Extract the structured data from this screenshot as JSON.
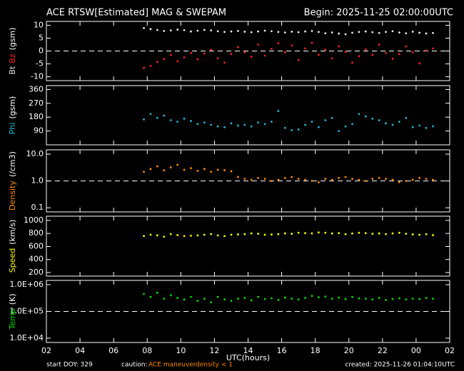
{
  "header": {
    "title": "ACE RTSW[Estimated] MAG & SWEPAM",
    "begin": "Begin: 2025-11-25 02:00:00UTC"
  },
  "footer": {
    "start": "start DOY: 329",
    "caution": "caution:",
    "maneuver": "ACE maneuver",
    "density": "density < 1",
    "created": "created: 2025-11-26 01:04:10UTC"
  },
  "chart_data": [
    {
      "type": "scatter",
      "ylabel": "(gsm)",
      "xlim": [
        2,
        26
      ],
      "ylim": [
        -11.5,
        11.5
      ],
      "yticks": [
        10,
        5,
        0,
        -5,
        -10
      ],
      "hline": 0,
      "x": [
        7.8,
        8.2,
        8.6,
        9.0,
        9.4,
        9.8,
        10.2,
        10.6,
        11.0,
        11.4,
        11.8,
        12.2,
        12.6,
        13.0,
        13.4,
        13.8,
        14.2,
        14.6,
        15.0,
        15.4,
        15.8,
        16.2,
        16.6,
        17.0,
        17.4,
        17.8,
        18.2,
        18.6,
        19.0,
        19.4,
        19.8,
        20.2,
        20.6,
        21.0,
        21.4,
        21.8,
        22.2,
        22.6,
        23.0,
        23.4,
        23.8,
        24.2,
        24.6,
        25.0
      ],
      "series": [
        {
          "name": "Bt",
          "color": "#e8e8e8",
          "values": [
            8.9,
            8.5,
            8.2,
            7.8,
            8.0,
            8.3,
            8.1,
            7.6,
            7.9,
            8.2,
            8.0,
            7.7,
            7.4,
            7.6,
            7.8,
            7.5,
            7.3,
            7.6,
            7.9,
            7.7,
            7.4,
            7.2,
            7.5,
            7.3,
            7.6,
            7.8,
            7.4,
            6.9,
            7.2,
            6.8,
            6.5,
            7.1,
            7.4,
            7.6,
            7.3,
            7.0,
            7.4,
            7.7,
            7.2,
            6.9,
            7.5,
            7.1,
            6.8,
            7.0
          ]
        },
        {
          "name": "Bz",
          "color": "#ff2020",
          "values": [
            -6.5,
            -5.8,
            -4.2,
            -3.1,
            -1.5,
            -4.0,
            -2.5,
            -0.8,
            -3.2,
            -1.0,
            0.5,
            -2.8,
            -4.5,
            -1.2,
            1.5,
            -0.5,
            -2.2,
            2.5,
            -1.8,
            0.8,
            3.0,
            -0.5,
            2.2,
            -3.5,
            1.0,
            3.2,
            -1.5,
            0.5,
            -2.8,
            1.8,
            -0.3,
            -4.5,
            -2.0,
            0.6,
            -1.5,
            2.5,
            -0.8,
            -3.0,
            -1.2,
            1.8,
            -0.5,
            -4.8,
            0.2,
            1.0
          ]
        }
      ]
    },
    {
      "type": "scatter",
      "ylabel": "(gsm)",
      "xlim": [
        2,
        26
      ],
      "ylim": [
        0,
        385
      ],
      "yticks": [
        360,
        270,
        180,
        90
      ],
      "x": [
        7.8,
        8.2,
        8.6,
        9.0,
        9.4,
        9.8,
        10.2,
        10.6,
        11.0,
        11.4,
        11.8,
        12.2,
        12.6,
        13.0,
        13.4,
        13.8,
        14.2,
        14.6,
        15.0,
        15.4,
        15.8,
        16.2,
        16.6,
        17.0,
        17.4,
        17.8,
        18.2,
        18.6,
        19.0,
        19.4,
        19.8,
        20.2,
        20.6,
        21.0,
        21.4,
        21.8,
        22.2,
        22.6,
        23.0,
        23.4,
        23.8,
        24.2,
        24.6,
        25.0
      ],
      "series": [
        {
          "name": "Phi",
          "color": "#20b8d8",
          "values": [
            165,
            200,
            175,
            190,
            160,
            150,
            170,
            155,
            135,
            145,
            130,
            120,
            115,
            140,
            125,
            130,
            120,
            145,
            135,
            150,
            220,
            110,
            95,
            100,
            130,
            150,
            115,
            160,
            175,
            90,
            120,
            135,
            200,
            185,
            170,
            160,
            140,
            130,
            150,
            175,
            115,
            125,
            110,
            120
          ]
        }
      ]
    },
    {
      "type": "scatter",
      "ylabel": "(/cm3)",
      "log": true,
      "xlim": [
        2,
        26
      ],
      "ylim": [
        0.07,
        14.5
      ],
      "yticks": [
        {
          "value": 10,
          "label": "10.0"
        },
        {
          "value": 1,
          "label": "1.0"
        },
        0.1
      ],
      "hline": 1,
      "x": [
        7.8,
        8.2,
        8.6,
        9.0,
        9.4,
        9.8,
        10.2,
        10.6,
        11.0,
        11.4,
        11.8,
        12.2,
        12.6,
        13.0,
        13.4,
        13.8,
        14.2,
        14.6,
        15.0,
        15.4,
        15.8,
        16.2,
        16.6,
        17.0,
        17.4,
        17.8,
        18.2,
        18.6,
        19.0,
        19.4,
        19.8,
        20.2,
        20.6,
        21.0,
        21.4,
        21.8,
        22.2,
        22.6,
        23.0,
        23.4,
        23.8,
        24.2,
        24.6,
        25.0
      ],
      "series": [
        {
          "name": "Density",
          "color": "#ff8c00",
          "values": [
            2.2,
            2.8,
            3.5,
            2.5,
            3.2,
            4.0,
            2.6,
            3.0,
            2.4,
            2.8,
            2.2,
            2.6,
            2.5,
            2.3,
            1.4,
            1.2,
            1.1,
            1.3,
            1.2,
            1.0,
            1.1,
            1.3,
            1.4,
            1.2,
            1.1,
            1.0,
            0.9,
            1.2,
            1.1,
            1.3,
            1.4,
            1.2,
            1.1,
            1.0,
            1.2,
            1.3,
            1.2,
            1.1,
            0.9,
            1.0,
            1.1,
            1.3,
            1.2,
            1.1
          ]
        }
      ]
    },
    {
      "type": "scatter",
      "ylabel": "(km/s)",
      "xlim": [
        2,
        26
      ],
      "ylim": [
        145,
        1065
      ],
      "yticks": [
        1000,
        800,
        600,
        400,
        200
      ],
      "x": [
        7.8,
        8.2,
        8.6,
        9.0,
        9.4,
        9.8,
        10.2,
        10.6,
        11.0,
        11.4,
        11.8,
        12.2,
        12.6,
        13.0,
        13.4,
        13.8,
        14.2,
        14.6,
        15.0,
        15.4,
        15.8,
        16.2,
        16.6,
        17.0,
        17.4,
        17.8,
        18.2,
        18.6,
        19.0,
        19.4,
        19.8,
        20.2,
        20.6,
        21.0,
        21.4,
        21.8,
        22.2,
        22.6,
        23.0,
        23.4,
        23.8,
        24.2,
        24.6,
        25.0
      ],
      "series": [
        {
          "name": "Speed",
          "color": "#ffff00",
          "values": [
            760,
            780,
            770,
            750,
            790,
            775,
            760,
            765,
            770,
            780,
            790,
            770,
            760,
            780,
            785,
            790,
            800,
            795,
            780,
            785,
            790,
            800,
            795,
            810,
            805,
            800,
            815,
            810,
            800,
            805,
            790,
            800,
            810,
            805,
            795,
            800,
            790,
            800,
            810,
            795,
            785,
            780,
            790,
            775
          ]
        }
      ]
    },
    {
      "type": "scatter",
      "ylabel": "(K)",
      "xlabel": "UTC(hours)",
      "log": true,
      "xlim": [
        2,
        26
      ],
      "ylim": [
        6900,
        1450000
      ],
      "yticks": [
        {
          "value": 1000000,
          "label": "1.0E+06"
        },
        {
          "value": 100000,
          "label": "1.0E+05"
        },
        {
          "value": 10000,
          "label": "1.0E+04"
        }
      ],
      "hline": 100000,
      "xticks": [
        {
          "value": 2,
          "label": "02"
        },
        {
          "value": 4,
          "label": "04"
        },
        {
          "value": 6,
          "label": "06"
        },
        {
          "value": 8,
          "label": "08"
        },
        10,
        12,
        14,
        16,
        18,
        20,
        22,
        {
          "value": 24,
          "label": "00"
        },
        {
          "value": 26,
          "label": "02"
        }
      ],
      "x": [
        7.8,
        8.2,
        8.6,
        9.0,
        9.4,
        9.8,
        10.2,
        10.6,
        11.0,
        11.4,
        11.8,
        12.2,
        12.6,
        13.0,
        13.4,
        13.8,
        14.2,
        14.6,
        15.0,
        15.4,
        15.8,
        16.2,
        16.6,
        17.0,
        17.4,
        17.8,
        18.2,
        18.6,
        19.0,
        19.4,
        19.8,
        20.2,
        20.6,
        21.0,
        21.4,
        21.8,
        22.2,
        22.6,
        23.0,
        23.4,
        23.8,
        24.2,
        24.6,
        25.0
      ],
      "series": [
        {
          "name": "Temp",
          "color": "#00e000",
          "values": [
            450000,
            350000,
            500000,
            300000,
            400000,
            320000,
            280000,
            350000,
            250000,
            300000,
            220000,
            350000,
            280000,
            250000,
            300000,
            320000,
            260000,
            350000,
            290000,
            310000,
            270000,
            330000,
            300000,
            280000,
            320000,
            380000,
            340000,
            360000,
            300000,
            330000,
            290000,
            350000,
            310000,
            300000,
            280000,
            320000,
            270000,
            290000,
            310000,
            280000,
            300000,
            290000,
            320000,
            300000
          ]
        }
      ]
    }
  ]
}
